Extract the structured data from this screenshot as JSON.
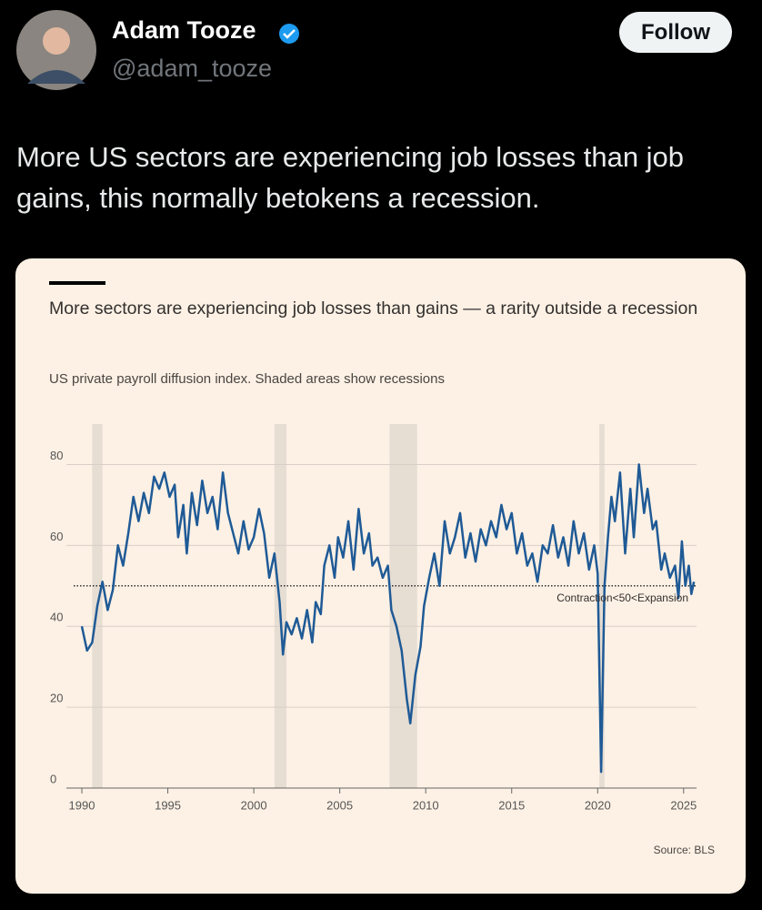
{
  "tweet": {
    "name": "Adam Tooze",
    "handle": "@adam_tooze",
    "button": "Follow",
    "text": "More US sectors are experiencing job losses than job gains, this normally betokens a recession."
  },
  "chart_data": {
    "type": "line",
    "title": "More sectors are experiencing job losses than gains — a rarity outside a recession",
    "subtitle": "US private payroll diffusion index. Shaded areas show recessions",
    "source": "Source: BLS",
    "annotation": "Contraction<50<Expansion",
    "reference_line": 50,
    "recessions": [
      [
        1990.6,
        1991.2
      ],
      [
        2001.2,
        2001.9
      ],
      [
        2007.9,
        2009.5
      ],
      [
        2020.1,
        2020.4
      ]
    ],
    "recession_color": "#e6ddd3",
    "color": "#1f5a96",
    "grid": true,
    "xlim": [
      1989.1,
      2025.75
    ],
    "ylim": [
      0,
      90
    ],
    "xticks": [
      1990,
      1995,
      2000,
      2005,
      2010,
      2015,
      2020,
      2025
    ],
    "yticks": [
      0,
      20,
      40,
      60,
      80
    ],
    "x": [
      1990.0,
      1990.3,
      1990.6,
      1990.9,
      1991.2,
      1991.5,
      1991.8,
      1992.1,
      1992.4,
      1992.7,
      1993.0,
      1993.3,
      1993.6,
      1993.9,
      1994.2,
      1994.5,
      1994.8,
      1995.1,
      1995.4,
      1995.6,
      1995.9,
      1996.1,
      1996.4,
      1996.7,
      1997.0,
      1997.3,
      1997.6,
      1997.9,
      1998.2,
      1998.5,
      1998.8,
      1999.1,
      1999.4,
      1999.7,
      2000.0,
      2000.3,
      2000.6,
      2000.9,
      2001.2,
      2001.5,
      2001.7,
      2001.9,
      2002.2,
      2002.5,
      2002.8,
      2003.1,
      2003.4,
      2003.6,
      2003.9,
      2004.1,
      2004.4,
      2004.7,
      2004.9,
      2005.2,
      2005.5,
      2005.8,
      2006.1,
      2006.4,
      2006.7,
      2006.9,
      2007.2,
      2007.5,
      2007.8,
      2008.0,
      2008.3,
      2008.6,
      2008.9,
      2009.1,
      2009.4,
      2009.7,
      2009.9,
      2010.2,
      2010.5,
      2010.8,
      2011.1,
      2011.4,
      2011.7,
      2012.0,
      2012.3,
      2012.6,
      2012.9,
      2013.2,
      2013.5,
      2013.8,
      2014.1,
      2014.4,
      2014.7,
      2015.0,
      2015.3,
      2015.6,
      2015.9,
      2016.2,
      2016.5,
      2016.8,
      2017.1,
      2017.4,
      2017.7,
      2018.0,
      2018.3,
      2018.6,
      2018.9,
      2019.2,
      2019.5,
      2019.8,
      2020.0,
      2020.2,
      2020.4,
      2020.6,
      2020.8,
      2021.0,
      2021.3,
      2021.6,
      2021.9,
      2022.1,
      2022.4,
      2022.7,
      2022.9,
      2023.2,
      2023.4,
      2023.7,
      2023.9,
      2024.2,
      2024.5,
      2024.7,
      2024.9,
      2025.1,
      2025.3,
      2025.45,
      2025.6
    ],
    "values": [
      40,
      34,
      36,
      45,
      51,
      44,
      49,
      60,
      55,
      63,
      72,
      66,
      73,
      68,
      77,
      74,
      78,
      72,
      75,
      62,
      70,
      58,
      73,
      65,
      76,
      68,
      72,
      64,
      78,
      68,
      63,
      58,
      66,
      59,
      62,
      69,
      63,
      52,
      58,
      46,
      33,
      41,
      38,
      42,
      37,
      44,
      36,
      46,
      43,
      55,
      60,
      52,
      62,
      57,
      66,
      54,
      69,
      58,
      63,
      55,
      57,
      52,
      55,
      44,
      40,
      34,
      22,
      16,
      28,
      35,
      45,
      52,
      58,
      50,
      66,
      58,
      62,
      68,
      57,
      63,
      56,
      64,
      60,
      66,
      62,
      70,
      64,
      68,
      58,
      63,
      55,
      58,
      51,
      60,
      58,
      65,
      57,
      62,
      55,
      66,
      58,
      63,
      54,
      60,
      53,
      4,
      50,
      62,
      72,
      66,
      78,
      58,
      74,
      62,
      80,
      68,
      74,
      64,
      66,
      54,
      58,
      52,
      55,
      47,
      61,
      50,
      55,
      48,
      51
    ]
  }
}
